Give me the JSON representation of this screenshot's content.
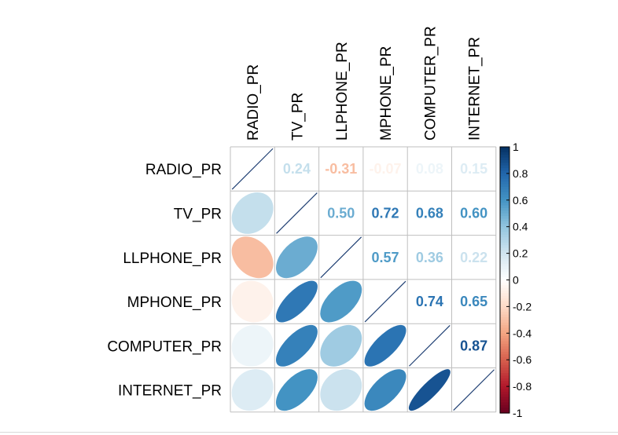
{
  "chart_data": {
    "type": "heatmap",
    "variables": [
      "RADIO_PR",
      "TV_PR",
      "LLPHONE_PR",
      "MPHONE_PR",
      "COMPUTER_PR",
      "INTERNET_PR"
    ],
    "matrix": [
      [
        1.0,
        0.24,
        -0.31,
        -0.07,
        0.08,
        0.15
      ],
      [
        0.24,
        1.0,
        0.5,
        0.72,
        0.68,
        0.6
      ],
      [
        -0.31,
        0.5,
        1.0,
        0.57,
        0.36,
        0.22
      ],
      [
        -0.07,
        0.72,
        0.57,
        1.0,
        0.74,
        0.65
      ],
      [
        0.08,
        0.68,
        0.36,
        0.74,
        1.0,
        0.87
      ],
      [
        0.15,
        0.6,
        0.22,
        0.65,
        0.87,
        1.0
      ]
    ],
    "upper_labels": [
      [
        "0.24",
        "-0.31",
        "-0.07",
        "0.08",
        "0.15"
      ],
      [
        "0.50",
        "0.72",
        "0.68",
        "0.60"
      ],
      [
        "0.57",
        "0.36",
        "0.22"
      ],
      [
        "0.74",
        "0.65"
      ],
      [
        "0.87"
      ]
    ],
    "lower_shape": "ellipse",
    "upper_shape": "number",
    "colorbar": {
      "range": [
        -1,
        1
      ],
      "ticks": [
        "1",
        "0.8",
        "0.6",
        "0.4",
        "0.2",
        "0",
        "-0.2",
        "-0.4",
        "-0.6",
        "-0.8",
        "-1"
      ],
      "colors": [
        "#67001f",
        "#b2182b",
        "#d6604d",
        "#f4a582",
        "#fddbc7",
        "#ffffff",
        "#d1e5f0",
        "#92c5de",
        "#4393c3",
        "#2166ac",
        "#053061"
      ]
    }
  }
}
